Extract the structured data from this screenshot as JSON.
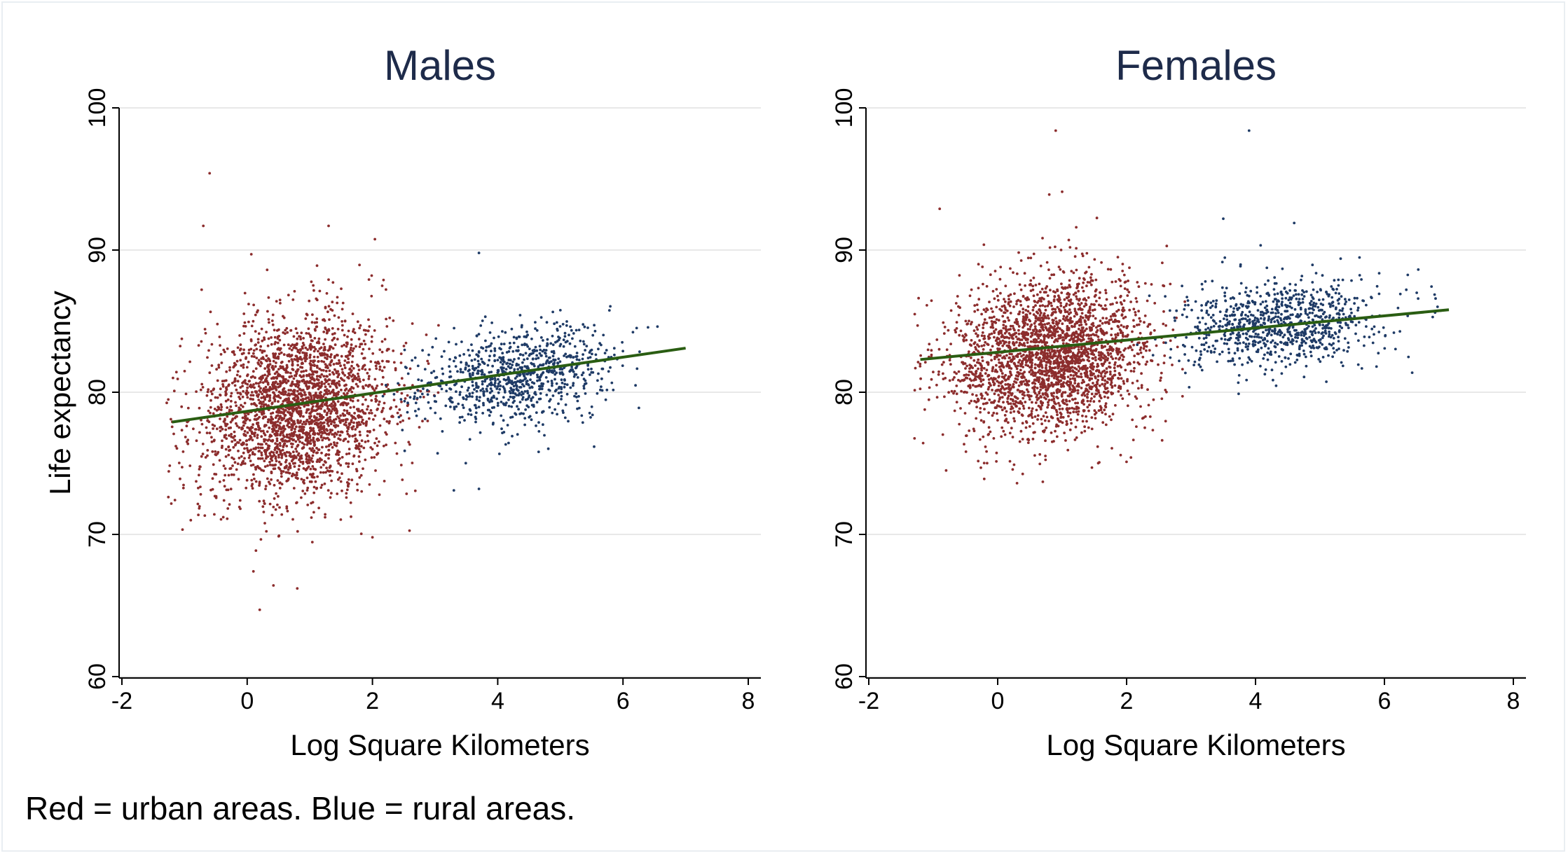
{
  "note": "Red = urban areas. Blue = rural areas.",
  "colors": {
    "urban": "#8c2d2d",
    "rural": "#1f3b66",
    "fit": "#2a5d12",
    "title": "#1e2b4a",
    "grid": "#e8e8e8",
    "axis": "#000000"
  },
  "chart_data": [
    {
      "type": "scatter",
      "title": "Males",
      "xlabel": "Log Square Kilometers",
      "ylabel": "Life expectancy",
      "xlim": [
        -2,
        8
      ],
      "ylim": [
        60,
        100
      ],
      "x_ticks": [
        "-2",
        "0",
        "2",
        "4",
        "6",
        "8"
      ],
      "y_ticks": [
        "60",
        "70",
        "80",
        "90",
        "100"
      ],
      "grid": "horizontal",
      "series": [
        {
          "group": "urban",
          "x_range": [
            -1.3,
            2.5
          ],
          "x_center": 0.8,
          "y_center": 79.0,
          "y_spread": 3.2,
          "count": 2600,
          "outliers": [
            [
              -0.6,
              95.4
            ],
            [
              -0.7,
              91.7
            ],
            [
              1.3,
              91.7
            ],
            [
              0.1,
              67.4
            ],
            [
              0.2,
              64.7
            ],
            [
              0.8,
              66.2
            ],
            [
              2.0,
              69.8
            ],
            [
              -0.9,
              71.0
            ]
          ]
        },
        {
          "group": "rural",
          "x_range": [
            2.5,
            7.0
          ],
          "x_center": 4.3,
          "y_center": 81.2,
          "y_spread": 1.7,
          "count": 900,
          "outliers": [
            [
              3.7,
              89.8
            ],
            [
              3.3,
              73.1
            ],
            [
              3.7,
              73.2
            ]
          ]
        }
      ],
      "fit_line": {
        "x": [
          -1.2,
          7.0
        ],
        "y": [
          77.9,
          83.1
        ]
      }
    },
    {
      "type": "scatter",
      "title": "Females",
      "xlabel": "Log Square Kilometers",
      "ylabel": "",
      "xlim": [
        -2,
        8
      ],
      "ylim": [
        60,
        100
      ],
      "x_ticks": [
        "-2",
        "0",
        "2",
        "4",
        "6",
        "8"
      ],
      "y_ticks": [
        "60",
        "70",
        "80",
        "90",
        "100"
      ],
      "grid": "horizontal",
      "series": [
        {
          "group": "urban",
          "x_range": [
            -1.3,
            2.5
          ],
          "x_center": 0.8,
          "y_center": 82.6,
          "y_spread": 2.7,
          "count": 2600,
          "outliers": [
            [
              0.9,
              98.4
            ],
            [
              -0.9,
              92.9
            ],
            [
              0.8,
              93.9
            ],
            [
              1.0,
              94.1
            ],
            [
              -0.8,
              74.5
            ],
            [
              0.3,
              73.6
            ],
            [
              0.7,
              73.7
            ]
          ]
        },
        {
          "group": "rural",
          "x_range": [
            2.5,
            7.0
          ],
          "x_center": 4.4,
          "y_center": 84.8,
          "y_spread": 1.5,
          "count": 900,
          "outliers": [
            [
              3.9,
              98.4
            ],
            [
              4.6,
              91.9
            ],
            [
              3.5,
              92.2
            ]
          ]
        }
      ],
      "fit_line": {
        "x": [
          -1.2,
          7.0
        ],
        "y": [
          82.3,
          85.8
        ]
      }
    }
  ]
}
